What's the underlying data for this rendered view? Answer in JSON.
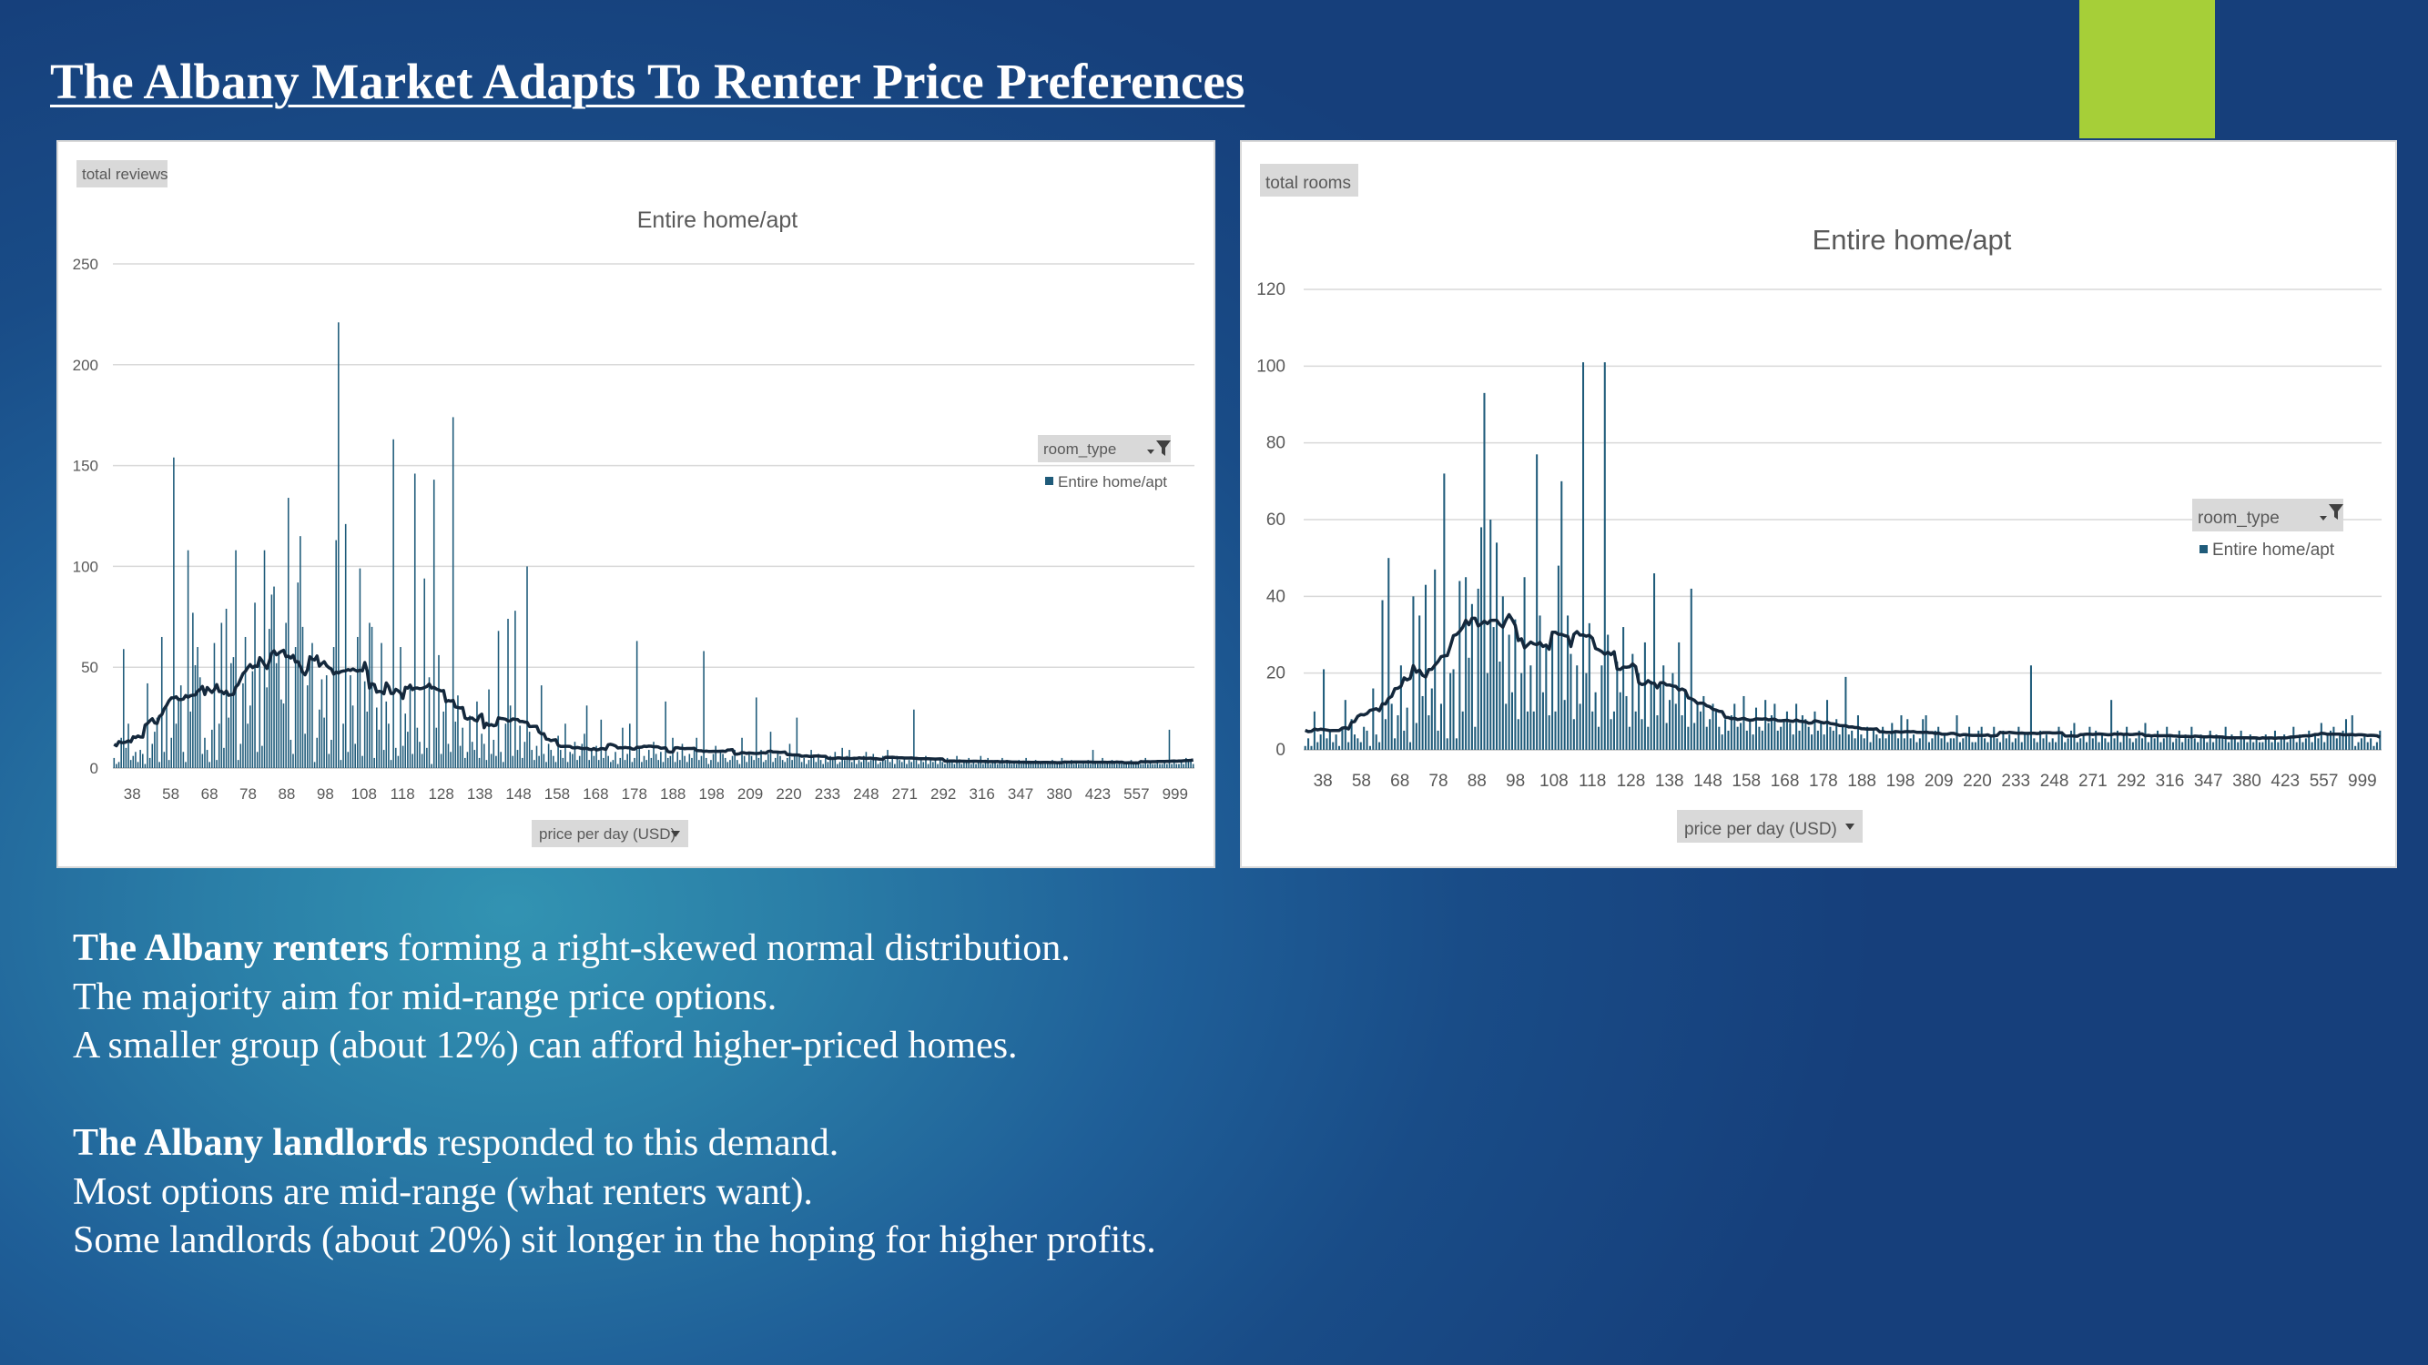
{
  "slide": {
    "title": "The Albany Market Adapts To Renter Price Preferences",
    "accent_color": "#a6cf38"
  },
  "paragraph1": {
    "lead": "The Albany renters",
    "line1_rest": " forming a right-skewed normal distribution.",
    "line2": "The majority aim for mid-range price options.",
    "line3": "A smaller group (about 12%) can afford higher-priced homes."
  },
  "paragraph2": {
    "lead": "The Albany landlords",
    "line1_rest": " responded to this demand.",
    "line2": "Most options are mid-range (what renters want).",
    "line3": "Some landlords  (about 20%) sit longer in the hoping for higher profits."
  },
  "chart_data": [
    {
      "type": "bar",
      "title": "Entire home/apt",
      "ylabel": "total reviews",
      "xlabel": "price per day (USD)",
      "legend_title": "room_type",
      "legend_position": "right",
      "series": [
        {
          "name": "Entire home/apt",
          "color": "#1f5b7a"
        }
      ],
      "trendline_color": "#14283c",
      "ylim": [
        0,
        250
      ],
      "yticks": [
        0,
        50,
        100,
        150,
        200,
        250
      ],
      "grid": true,
      "x_tick_labels": [
        "38",
        "58",
        "68",
        "78",
        "88",
        "98",
        "108",
        "118",
        "128",
        "138",
        "148",
        "158",
        "168",
        "178",
        "188",
        "198",
        "209",
        "220",
        "233",
        "248",
        "271",
        "292",
        "316",
        "347",
        "380",
        "423",
        "557",
        "999"
      ],
      "values": [
        5,
        2,
        3,
        15,
        59,
        10,
        22,
        4,
        6,
        8,
        3,
        9,
        7,
        2,
        42,
        5,
        12,
        18,
        25,
        3,
        65,
        8,
        32,
        4,
        15,
        154,
        22,
        35,
        41,
        8,
        3,
        108,
        28,
        77,
        51,
        60,
        45,
        7,
        15,
        9,
        3,
        19,
        62,
        4,
        22,
        72,
        10,
        79,
        25,
        52,
        55,
        108,
        4,
        12,
        42,
        65,
        22,
        31,
        48,
        82,
        8,
        53,
        11,
        108,
        40,
        69,
        86,
        90,
        52,
        58,
        34,
        32,
        72,
        134,
        14,
        7,
        60,
        92,
        115,
        70,
        17,
        41,
        53,
        62,
        3,
        15,
        29,
        44,
        25,
        46,
        7,
        14,
        60,
        113,
        221,
        4,
        22,
        121,
        8,
        46,
        31,
        12,
        65,
        99,
        6,
        43,
        28,
        72,
        70,
        5,
        30,
        19,
        62,
        9,
        33,
        22,
        4,
        163,
        10,
        6,
        60,
        11,
        27,
        18,
        40,
        7,
        146,
        20,
        13,
        7,
        94,
        10,
        45,
        2,
        143,
        20,
        56,
        7,
        28,
        34,
        12,
        8,
        174,
        23,
        36,
        11,
        20,
        5,
        8,
        26,
        13,
        9,
        33,
        5,
        17,
        12,
        4,
        39,
        7,
        14,
        6,
        68,
        8,
        3,
        22,
        74,
        31,
        6,
        78,
        9,
        21,
        5,
        13,
        100,
        18,
        9,
        4,
        11,
        6,
        41,
        7,
        3,
        12,
        9,
        6,
        3,
        16,
        9,
        5,
        22,
        3,
        8,
        7,
        13,
        4,
        6,
        12,
        17,
        31,
        4,
        9,
        6,
        11,
        4,
        24,
        5,
        9,
        6,
        3,
        4,
        8,
        2,
        5,
        20,
        4,
        7,
        22,
        3,
        5,
        63,
        11,
        3,
        6,
        4,
        9,
        5,
        13,
        7,
        4,
        8,
        3,
        33,
        5,
        6,
        15,
        3,
        8,
        4,
        12,
        6,
        3,
        7,
        5,
        9,
        15,
        4,
        6,
        58,
        5,
        2,
        4,
        7,
        11,
        3,
        8,
        7,
        5,
        3,
        4,
        6,
        9,
        4,
        2,
        15,
        6,
        3,
        8,
        6,
        4,
        35,
        5,
        9,
        3,
        4,
        7,
        18,
        3,
        5,
        8,
        6,
        4,
        3,
        5,
        12,
        4,
        6,
        25,
        7,
        3,
        5,
        2,
        4,
        9,
        6,
        3,
        7,
        4,
        2,
        5,
        3,
        6,
        4,
        8,
        2,
        3,
        10,
        4,
        6,
        9,
        3,
        5,
        2,
        4,
        3,
        6,
        8,
        3,
        4,
        7,
        5,
        2,
        3,
        6,
        4,
        9,
        3,
        5,
        2,
        6,
        4,
        3,
        5,
        2,
        4,
        3,
        29,
        4,
        2,
        5,
        3,
        6,
        2,
        4,
        3,
        5,
        2,
        4,
        3,
        2,
        5,
        3,
        4,
        2,
        6,
        3,
        2,
        4,
        3,
        5,
        2,
        3,
        2,
        4,
        6,
        2,
        3,
        5,
        2,
        3,
        4,
        2,
        3,
        5,
        2,
        4,
        3,
        2,
        3,
        2,
        4,
        2,
        3,
        5,
        2,
        3,
        2,
        4,
        2,
        3,
        2,
        2,
        3,
        2,
        4,
        2,
        3,
        2,
        5,
        2,
        3,
        2,
        4,
        2,
        3,
        2,
        2,
        3,
        2,
        4,
        2,
        9,
        3,
        2,
        2,
        5,
        2,
        3,
        2,
        4,
        2,
        2,
        3,
        2,
        2,
        3,
        2,
        4,
        2,
        2,
        3,
        2,
        2,
        5,
        2,
        3,
        2,
        2,
        3,
        2,
        2,
        3,
        2,
        19,
        2,
        3,
        2,
        2,
        3,
        2,
        5,
        3,
        4,
        2
      ]
    },
    {
      "type": "bar",
      "title": "Entire home/apt",
      "ylabel": "total rooms",
      "xlabel": "price per day (USD)",
      "legend_title": "room_type",
      "legend_position": "right",
      "series": [
        {
          "name": "Entire home/apt",
          "color": "#1f5b7a"
        }
      ],
      "trendline_color": "#14283c",
      "ylim": [
        0,
        120
      ],
      "yticks": [
        0,
        20,
        40,
        60,
        80,
        100,
        120
      ],
      "grid": true,
      "x_tick_labels": [
        "38",
        "58",
        "68",
        "78",
        "88",
        "98",
        "108",
        "118",
        "128",
        "138",
        "148",
        "158",
        "168",
        "178",
        "188",
        "198",
        "209",
        "220",
        "233",
        "248",
        "271",
        "292",
        "316",
        "347",
        "380",
        "423",
        "557",
        "999"
      ],
      "values": [
        1,
        3,
        1,
        10,
        2,
        4,
        21,
        3,
        5,
        2,
        4,
        1,
        6,
        13,
        2,
        8,
        4,
        3,
        2,
        6,
        5,
        1,
        16,
        4,
        2,
        39,
        8,
        50,
        12,
        3,
        9,
        22,
        5,
        11,
        2,
        40,
        7,
        35,
        14,
        43,
        9,
        16,
        47,
        5,
        12,
        72,
        3,
        20,
        21,
        3,
        44,
        10,
        45,
        24,
        38,
        6,
        42,
        58,
        93,
        20,
        60,
        32,
        54,
        23,
        40,
        12,
        30,
        15,
        34,
        8,
        20,
        45,
        10,
        22,
        10,
        77,
        35,
        15,
        27,
        9,
        30,
        10,
        48,
        70,
        13,
        35,
        25,
        8,
        22,
        12,
        101,
        20,
        33,
        10,
        15,
        6,
        22,
        101,
        30,
        8,
        10,
        23,
        15,
        32,
        14,
        6,
        25,
        10,
        20,
        8,
        28,
        6,
        18,
        46,
        9,
        17,
        22,
        7,
        13,
        20,
        12,
        28,
        9,
        15,
        6,
        42,
        7,
        12,
        10,
        14,
        6,
        8,
        12,
        10,
        6,
        4,
        8,
        5,
        9,
        12,
        6,
        7,
        14,
        5,
        8,
        4,
        11,
        6,
        5,
        13,
        7,
        9,
        12,
        5,
        6,
        8,
        10,
        7,
        4,
        12,
        5,
        9,
        8,
        6,
        4,
        10,
        5,
        7,
        4,
        13,
        6,
        5,
        8,
        4,
        6,
        19,
        4,
        5,
        3,
        9,
        4,
        3,
        6,
        2,
        5,
        4,
        3,
        6,
        3,
        4,
        7,
        5,
        3,
        9,
        3,
        8,
        3,
        4,
        2,
        3,
        8,
        9,
        2,
        3,
        5,
        6,
        3,
        4,
        2,
        3,
        3,
        9,
        2,
        3,
        4,
        6,
        2,
        2,
        5,
        6,
        3,
        2,
        4,
        6,
        3,
        2,
        5,
        3,
        4,
        2,
        3,
        6,
        2,
        4,
        4,
        22,
        3,
        2,
        5,
        3,
        4,
        2,
        3,
        2,
        6,
        4,
        2,
        3,
        5,
        7,
        2,
        3,
        4,
        2,
        6,
        3,
        5,
        2,
        4,
        3,
        2,
        13,
        3,
        5,
        2,
        4,
        6,
        3,
        2,
        3,
        5,
        3,
        7,
        2,
        4,
        3,
        5,
        2,
        3,
        6,
        4,
        2,
        3,
        5,
        2,
        4,
        3,
        6,
        3,
        2,
        4,
        3,
        2,
        5,
        2,
        4,
        3,
        3,
        6,
        2,
        4,
        3,
        2,
        5,
        3,
        2,
        4,
        2,
        3,
        2,
        2,
        4,
        3,
        2,
        5,
        2,
        3,
        4,
        2,
        3,
        6,
        2,
        4,
        2,
        3,
        5,
        2,
        4,
        3,
        7,
        2,
        4,
        5,
        6,
        3,
        4,
        5,
        8,
        4,
        9,
        1,
        2,
        3,
        4,
        2,
        3,
        1,
        2,
        5
      ]
    }
  ]
}
